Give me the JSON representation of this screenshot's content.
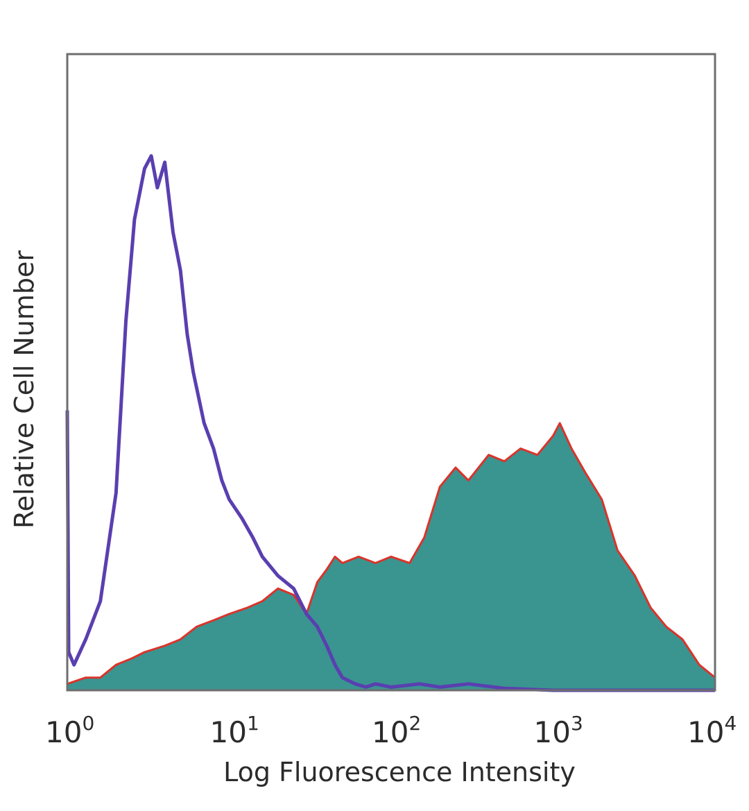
{
  "chart_data": {
    "type": "area",
    "title": "",
    "xlabel": "Log Fluorescence Intensity",
    "ylabel": "Relative Cell Number",
    "x_scale": "log",
    "xlim": [
      1,
      10000
    ],
    "ylim": [
      0,
      1
    ],
    "grid": false,
    "legend": "none",
    "x_ticks": [
      {
        "base": "10",
        "exp": "0",
        "value": 1
      },
      {
        "base": "10",
        "exp": "1",
        "value": 10
      },
      {
        "base": "10",
        "exp": "2",
        "value": 100
      },
      {
        "base": "10",
        "exp": "3",
        "value": 1000
      },
      {
        "base": "10",
        "exp": "4",
        "value": 10000
      }
    ],
    "series": [
      {
        "style": "filled",
        "fill_color": "#3a9490",
        "line_color": "#d9342b",
        "x": [
          1,
          1.3,
          1.6,
          2,
          2.5,
          3,
          4,
          5,
          6.3,
          8,
          10,
          13,
          16,
          20,
          25,
          30,
          35,
          40,
          45,
          50,
          63,
          80,
          100,
          130,
          160,
          200,
          250,
          300,
          400,
          500,
          630,
          800,
          1000,
          1100,
          1300,
          1600,
          2000,
          2500,
          3200,
          4000,
          5000,
          6300,
          8000,
          10000
        ],
        "y": [
          0.01,
          0.02,
          0.02,
          0.04,
          0.05,
          0.06,
          0.07,
          0.08,
          0.1,
          0.11,
          0.12,
          0.13,
          0.14,
          0.16,
          0.15,
          0.12,
          0.17,
          0.19,
          0.21,
          0.2,
          0.21,
          0.2,
          0.21,
          0.2,
          0.24,
          0.32,
          0.35,
          0.33,
          0.37,
          0.36,
          0.38,
          0.37,
          0.4,
          0.42,
          0.38,
          0.34,
          0.3,
          0.22,
          0.18,
          0.13,
          0.1,
          0.08,
          0.04,
          0.02
        ]
      },
      {
        "style": "line",
        "line_color": "#5a3fb0",
        "x": [
          1,
          1.02,
          1.1,
          1.3,
          1.6,
          2,
          2.3,
          2.6,
          3,
          3.3,
          3.6,
          4,
          4.5,
          5,
          5.5,
          6,
          7,
          8,
          9,
          10,
          12,
          14,
          16,
          20,
          25,
          30,
          35,
          40,
          45,
          50,
          60,
          70,
          80,
          100,
          150,
          200,
          300,
          500,
          1000,
          10000
        ],
        "y": [
          0.44,
          0.06,
          0.04,
          0.08,
          0.14,
          0.31,
          0.58,
          0.74,
          0.82,
          0.84,
          0.79,
          0.83,
          0.72,
          0.66,
          0.56,
          0.5,
          0.42,
          0.38,
          0.33,
          0.3,
          0.27,
          0.24,
          0.21,
          0.18,
          0.16,
          0.12,
          0.1,
          0.07,
          0.04,
          0.02,
          0.01,
          0.005,
          0.01,
          0.005,
          0.01,
          0.005,
          0.01,
          0.003,
          0,
          0
        ]
      }
    ]
  }
}
